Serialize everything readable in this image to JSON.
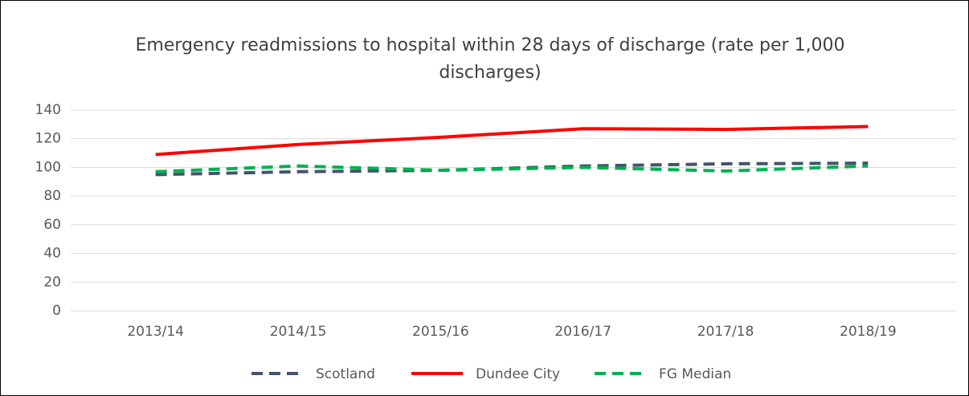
{
  "chart_data": {
    "type": "line",
    "title": "Emergency readmissions to hospital within 28 days of discharge (rate per 1,000 discharges)",
    "categories": [
      "2013/14",
      "2014/15",
      "2015/16",
      "2016/17",
      "2017/18",
      "2018/19"
    ],
    "series": [
      {
        "name": "Scotland",
        "color": "#44546a",
        "dashed": true,
        "values": [
          95,
          97,
          98,
          101,
          102.5,
          103
        ]
      },
      {
        "name": "Dundee City",
        "color": "#ff0000",
        "dashed": false,
        "values": [
          109,
          116,
          121,
          127,
          126.5,
          128.5
        ]
      },
      {
        "name": "FG Median",
        "color": "#00b050",
        "dashed": true,
        "values": [
          97,
          101,
          98,
          100,
          97.5,
          101
        ]
      }
    ],
    "ylim": [
      0,
      140
    ],
    "yticks": [
      0,
      20,
      40,
      60,
      80,
      100,
      120,
      140
    ],
    "grid": true,
    "legend": "bottom"
  }
}
